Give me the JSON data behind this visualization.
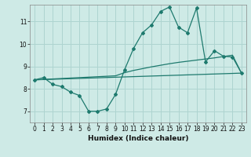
{
  "xlabel": "Humidex (Indice chaleur)",
  "background_color": "#ceeae6",
  "grid_color": "#aed4d0",
  "line_color": "#1e7a6e",
  "xlim": [
    -0.5,
    23.5
  ],
  "ylim": [
    6.5,
    11.75
  ],
  "yticks": [
    7,
    8,
    9,
    10,
    11
  ],
  "xticks": [
    0,
    1,
    2,
    3,
    4,
    5,
    6,
    7,
    8,
    9,
    10,
    11,
    12,
    13,
    14,
    15,
    16,
    17,
    18,
    19,
    20,
    21,
    22,
    23
  ],
  "curve1_x": [
    0,
    1,
    2,
    3,
    4,
    5,
    6,
    7,
    8,
    9,
    10,
    11,
    12,
    13,
    14,
    15,
    16,
    17,
    18,
    19,
    20,
    21,
    22,
    23
  ],
  "curve1_y": [
    8.4,
    8.5,
    8.2,
    8.1,
    7.85,
    7.7,
    7.0,
    7.0,
    7.1,
    7.75,
    8.85,
    9.8,
    10.5,
    10.85,
    11.45,
    11.65,
    10.75,
    10.5,
    11.6,
    9.2,
    9.7,
    9.45,
    9.42,
    8.7
  ],
  "curve2_x": [
    0,
    1,
    2,
    3,
    4,
    5,
    6,
    7,
    8,
    9,
    10,
    11,
    12,
    13,
    14,
    15,
    16,
    17,
    18,
    19,
    20,
    21,
    22,
    23
  ],
  "curve2_y": [
    8.4,
    8.42,
    8.44,
    8.46,
    8.48,
    8.5,
    8.52,
    8.54,
    8.56,
    8.58,
    8.72,
    8.82,
    8.9,
    8.98,
    9.05,
    9.12,
    9.18,
    9.23,
    9.28,
    9.33,
    9.38,
    9.44,
    9.5,
    8.7
  ],
  "curve3_x": [
    0,
    23
  ],
  "curve3_y": [
    8.4,
    8.7
  ]
}
